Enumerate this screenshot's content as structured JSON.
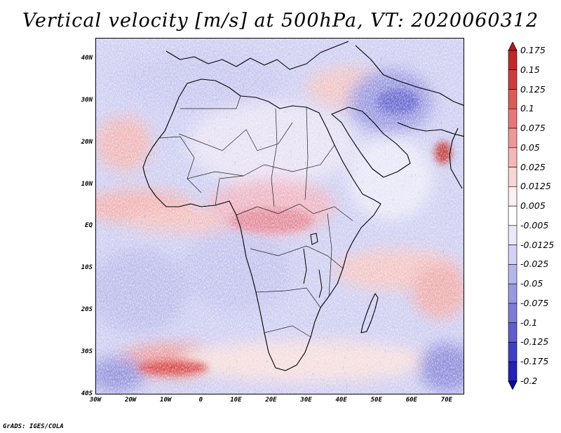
{
  "title": "Vertical velocity [m/s] at 500hPa, VT: 2020060312",
  "credit": "GrADS: IGES/COLA",
  "map": {
    "projection": "lat-lon",
    "lon_range": [
      -30,
      75
    ],
    "lat_range": [
      -40,
      45
    ],
    "lat_ticks": [
      {
        "value": 40,
        "label": "40N"
      },
      {
        "value": 30,
        "label": "30N"
      },
      {
        "value": 20,
        "label": "20N"
      },
      {
        "value": 10,
        "label": "10N"
      },
      {
        "value": 0,
        "label": "EQ"
      },
      {
        "value": -10,
        "label": "10S"
      },
      {
        "value": -20,
        "label": "20S"
      },
      {
        "value": -30,
        "label": "30S"
      },
      {
        "value": -40,
        "label": "40S"
      }
    ],
    "lon_ticks": [
      {
        "value": -30,
        "label": "30W"
      },
      {
        "value": -20,
        "label": "20W"
      },
      {
        "value": -10,
        "label": "10W"
      },
      {
        "value": 0,
        "label": "0"
      },
      {
        "value": 10,
        "label": "10E"
      },
      {
        "value": 20,
        "label": "20E"
      },
      {
        "value": 30,
        "label": "30E"
      },
      {
        "value": 40,
        "label": "40E"
      },
      {
        "value": 50,
        "label": "50E"
      },
      {
        "value": 60,
        "label": "60E"
      },
      {
        "value": 70,
        "label": "70E"
      }
    ],
    "field_variable": "vertical velocity",
    "pressure_level": "500hPa",
    "valid_time": "2020060312"
  },
  "colorbar": {
    "labels": [
      "0.175",
      "0.15",
      "0.125",
      "0.1",
      "0.075",
      "0.05",
      "0.025",
      "0.0125",
      "0.005",
      "-0.005",
      "-0.0125",
      "-0.025",
      "-0.05",
      "-0.075",
      "-0.1",
      "-0.125",
      "-0.175",
      "-0.2"
    ],
    "colors": [
      "#b01c20",
      "#c0282c",
      "#cf3c3d",
      "#dc5a58",
      "#e6777a",
      "#ee9899",
      "#f4b8b8",
      "#f9d6d6",
      "#fdf0f0",
      "#ffffff",
      "#e9e9f9",
      "#d2d2f4",
      "#b6b6ec",
      "#9999e3",
      "#7d7dd9",
      "#5e5ed0",
      "#3f3fc6",
      "#2323b8",
      "#0d0d9e"
    ]
  }
}
